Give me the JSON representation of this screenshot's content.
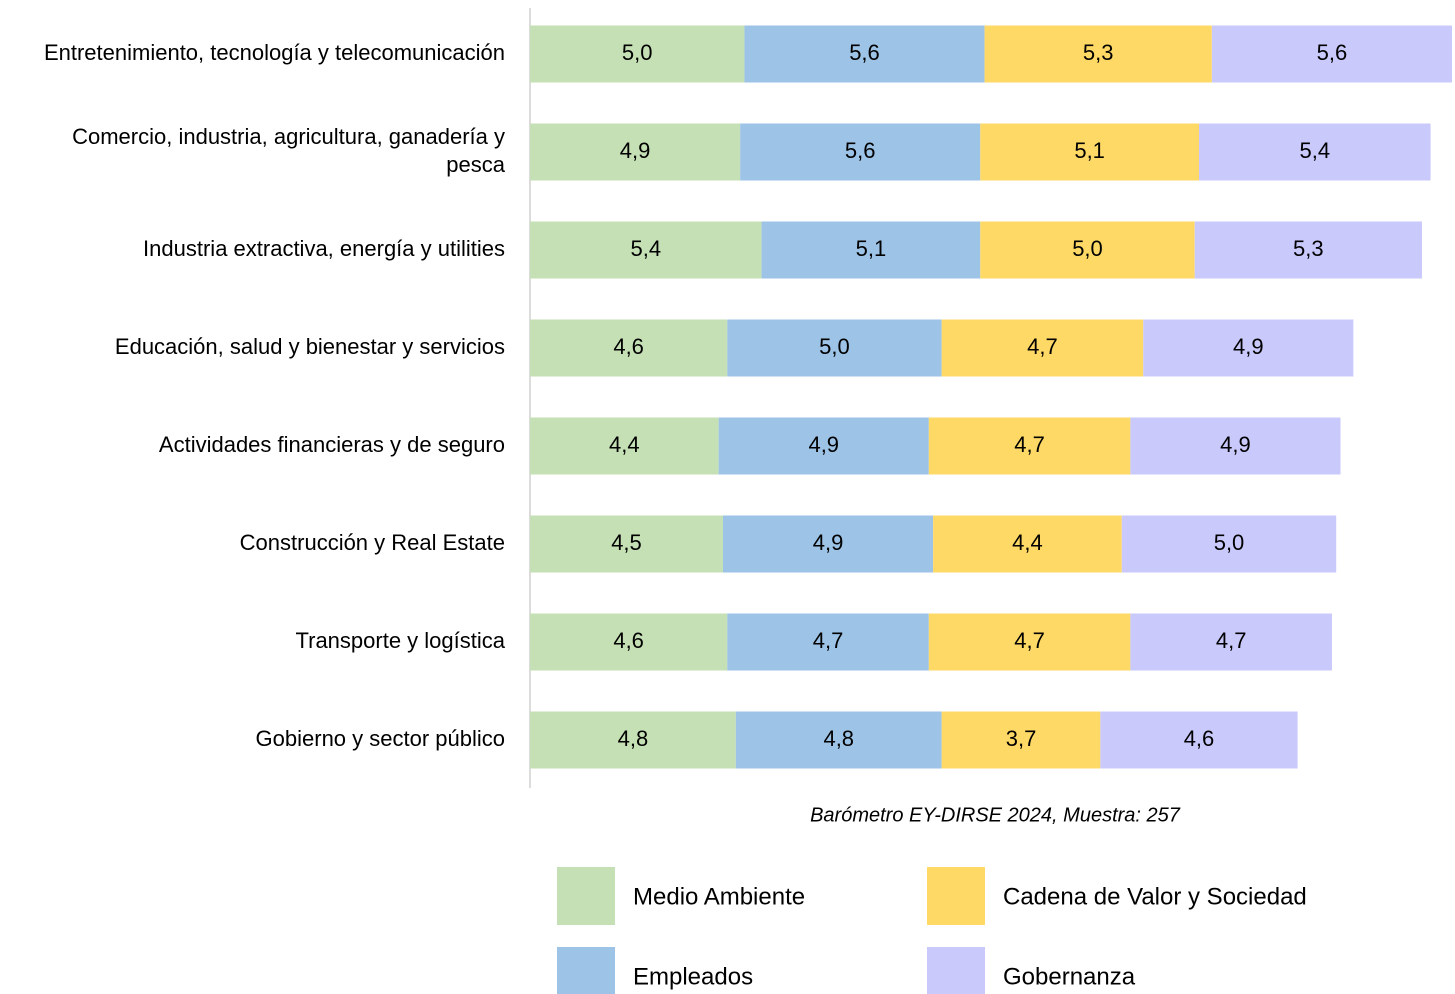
{
  "chart_data": {
    "type": "stacked-bar",
    "orientation": "horizontal",
    "categories": [
      "Entretenimiento, tecnología y telecomunicación",
      "Comercio, industria, agricultura, ganadería y pesca",
      "Industria extractiva, energía y utilities",
      "Educación, salud y bienestar y servicios",
      "Actividades financieras y de seguro",
      "Construcción y Real Estate",
      "Transporte y logística",
      "Gobierno y sector público"
    ],
    "series": [
      {
        "name": "Medio Ambiente",
        "color": "#c5e0b4",
        "values": [
          5.0,
          4.9,
          5.4,
          4.6,
          4.4,
          4.5,
          4.6,
          4.8
        ],
        "value_labels": [
          "5,0",
          "4,9",
          "5,4",
          "4,6",
          "4,4",
          "4,5",
          "4,6",
          "4,8"
        ]
      },
      {
        "name": "Empleados",
        "color": "#9dc3e6",
        "values": [
          5.6,
          5.6,
          5.1,
          5.0,
          4.9,
          4.9,
          4.7,
          4.8
        ],
        "value_labels": [
          "5,6",
          "5,6",
          "5,1",
          "5,0",
          "4,9",
          "4,9",
          "4,7",
          "4,8"
        ]
      },
      {
        "name": "Cadena de Valor y Sociedad",
        "color": "#ffd966",
        "values": [
          5.3,
          5.1,
          5.0,
          4.7,
          4.7,
          4.4,
          4.7,
          3.7
        ],
        "value_labels": [
          "5,3",
          "5,1",
          "5,0",
          "4,7",
          "4,7",
          "4,4",
          "4,7",
          "3,7"
        ]
      },
      {
        "name": "Gobernanza",
        "color": "#c9c9fb",
        "values": [
          5.6,
          5.4,
          5.3,
          4.9,
          4.9,
          5.0,
          4.7,
          4.6
        ],
        "value_labels": [
          "5,6",
          "5,4",
          "5,3",
          "4,9",
          "4,9",
          "5,0",
          "4,7",
          "4,6"
        ]
      }
    ],
    "annotation": "Barómetro EY-DIRSE 2024, Muestra: 257",
    "legend": "bottom"
  }
}
